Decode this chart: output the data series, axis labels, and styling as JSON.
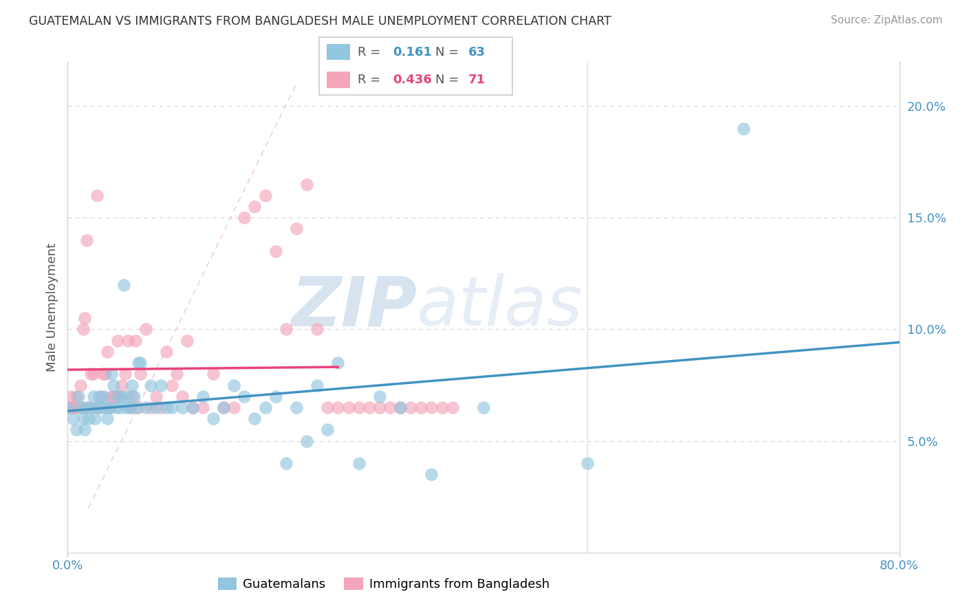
{
  "title": "GUATEMALAN VS IMMIGRANTS FROM BANGLADESH MALE UNEMPLOYMENT CORRELATION CHART",
  "source": "Source: ZipAtlas.com",
  "ylabel": "Male Unemployment",
  "xlim": [
    0,
    0.8
  ],
  "ylim": [
    0.0,
    0.22
  ],
  "yticks": [
    0.05,
    0.1,
    0.15,
    0.2
  ],
  "ytick_labels": [
    "5.0%",
    "10.0%",
    "15.0%",
    "20.0%"
  ],
  "xtick_labels": [
    "0.0%",
    "80.0%"
  ],
  "color_blue": "#92c5de",
  "color_pink": "#f4a5ba",
  "color_blue_line": "#4393c3",
  "color_pink_line": "#e8437a",
  "color_grid": "#d9d9d9",
  "watermark_zip": "ZIP",
  "watermark_atlas": "atlas",
  "guatemalans_x": [
    0.0,
    0.005,
    0.008,
    0.01,
    0.012,
    0.015,
    0.016,
    0.018,
    0.02,
    0.022,
    0.025,
    0.026,
    0.028,
    0.03,
    0.032,
    0.035,
    0.036,
    0.038,
    0.04,
    0.042,
    0.044,
    0.046,
    0.048,
    0.05,
    0.052,
    0.054,
    0.056,
    0.058,
    0.06,
    0.062,
    0.064,
    0.066,
    0.068,
    0.07,
    0.075,
    0.08,
    0.085,
    0.09,
    0.095,
    0.1,
    0.11,
    0.12,
    0.13,
    0.14,
    0.15,
    0.16,
    0.17,
    0.18,
    0.19,
    0.2,
    0.21,
    0.22,
    0.23,
    0.24,
    0.25,
    0.26,
    0.28,
    0.3,
    0.32,
    0.35,
    0.4,
    0.5,
    0.65
  ],
  "guatemalans_y": [
    0.065,
    0.06,
    0.055,
    0.07,
    0.065,
    0.06,
    0.055,
    0.065,
    0.06,
    0.065,
    0.07,
    0.06,
    0.065,
    0.07,
    0.065,
    0.07,
    0.065,
    0.06,
    0.065,
    0.08,
    0.075,
    0.065,
    0.07,
    0.065,
    0.07,
    0.12,
    0.065,
    0.07,
    0.065,
    0.075,
    0.07,
    0.065,
    0.085,
    0.085,
    0.065,
    0.075,
    0.065,
    0.075,
    0.065,
    0.065,
    0.065,
    0.065,
    0.07,
    0.06,
    0.065,
    0.075,
    0.07,
    0.06,
    0.065,
    0.07,
    0.04,
    0.065,
    0.05,
    0.075,
    0.055,
    0.085,
    0.04,
    0.07,
    0.065,
    0.035,
    0.065,
    0.04,
    0.19
  ],
  "bangladesh_x": [
    0.0,
    0.002,
    0.003,
    0.004,
    0.005,
    0.006,
    0.008,
    0.01,
    0.012,
    0.014,
    0.015,
    0.016,
    0.018,
    0.02,
    0.022,
    0.025,
    0.028,
    0.03,
    0.032,
    0.034,
    0.036,
    0.038,
    0.04,
    0.042,
    0.044,
    0.046,
    0.048,
    0.05,
    0.052,
    0.055,
    0.058,
    0.06,
    0.062,
    0.065,
    0.068,
    0.07,
    0.075,
    0.08,
    0.085,
    0.09,
    0.095,
    0.1,
    0.105,
    0.11,
    0.115,
    0.12,
    0.13,
    0.14,
    0.15,
    0.16,
    0.17,
    0.18,
    0.19,
    0.2,
    0.21,
    0.22,
    0.23,
    0.24,
    0.25,
    0.26,
    0.27,
    0.28,
    0.29,
    0.3,
    0.31,
    0.32,
    0.33,
    0.34,
    0.35,
    0.36,
    0.37
  ],
  "bangladesh_y": [
    0.065,
    0.065,
    0.07,
    0.065,
    0.065,
    0.065,
    0.07,
    0.065,
    0.075,
    0.065,
    0.1,
    0.105,
    0.14,
    0.065,
    0.08,
    0.08,
    0.16,
    0.065,
    0.07,
    0.08,
    0.08,
    0.09,
    0.065,
    0.07,
    0.07,
    0.07,
    0.095,
    0.07,
    0.075,
    0.08,
    0.095,
    0.065,
    0.07,
    0.095,
    0.065,
    0.08,
    0.1,
    0.065,
    0.07,
    0.065,
    0.09,
    0.075,
    0.08,
    0.07,
    0.095,
    0.065,
    0.065,
    0.08,
    0.065,
    0.065,
    0.15,
    0.155,
    0.16,
    0.135,
    0.1,
    0.145,
    0.165,
    0.1,
    0.065,
    0.065,
    0.065,
    0.065,
    0.065,
    0.065,
    0.065,
    0.065,
    0.065,
    0.065,
    0.065,
    0.065,
    0.065
  ],
  "background_color": "#ffffff"
}
